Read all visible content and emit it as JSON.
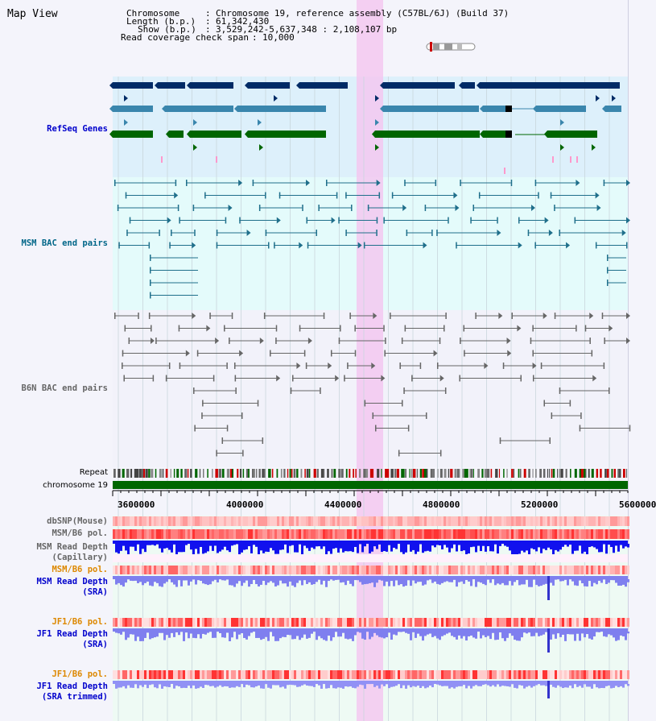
{
  "title": "Map View",
  "info": {
    "chromosome_label": "Chromosome",
    "chromosome_value": "Chromosome 19, reference assembly (C57BL/6J) (Build 37)",
    "length_label": "Length (b.p.)",
    "length_value": "61,342,430",
    "show_label": "Show (b.p.)",
    "show_value": "3,529,242-5,637,348 : 2,108,107 bp",
    "coverage_label": "Read coverage check span",
    "coverage_value": "10,000"
  },
  "tracks": {
    "refseq": "RefSeq Genes",
    "msm_bac": "MSM BAC end pairs",
    "b6n_bac": "B6N BAC end pairs",
    "repeat": "Repeat",
    "chromosome": "chromosome 19",
    "dbsnp": "dbSNP(Mouse)",
    "msm_b6_pol_1": "MSM/B6 pol.",
    "msm_rd_cap_1": "MSM Read Depth",
    "msm_rd_cap_2": "(Capillary)",
    "msm_b6_pol_2": "MSM/B6 pol.",
    "msm_rd_sra_1": "MSM Read Depth",
    "msm_rd_sra_2": "(SRA)",
    "jf1_b6_pol_1": "JF1/B6 pol.",
    "jf1_rd_sra_1": "JF1 Read Depth",
    "jf1_rd_sra_2": "(SRA)",
    "jf1_b6_pol_2": "JF1/B6 pol.",
    "jf1_rd_trim_1": "JF1 Read Depth",
    "jf1_rd_trim_2": "(SRA trimmed)"
  },
  "axis": {
    "ticks": [
      "3600000",
      "4000000",
      "4400000",
      "4800000",
      "5200000",
      "5600000"
    ]
  },
  "colors": {
    "refseq_label": "#0000cc",
    "msm_bac_label": "#006688",
    "b6n_bac_label": "#666666",
    "pol_msm_label": "#666666",
    "pol_orange_label": "#dd8800",
    "read_depth_label": "#0000cc",
    "highlight": "#f3c8f0",
    "chromosome_bar": "#006600"
  }
}
